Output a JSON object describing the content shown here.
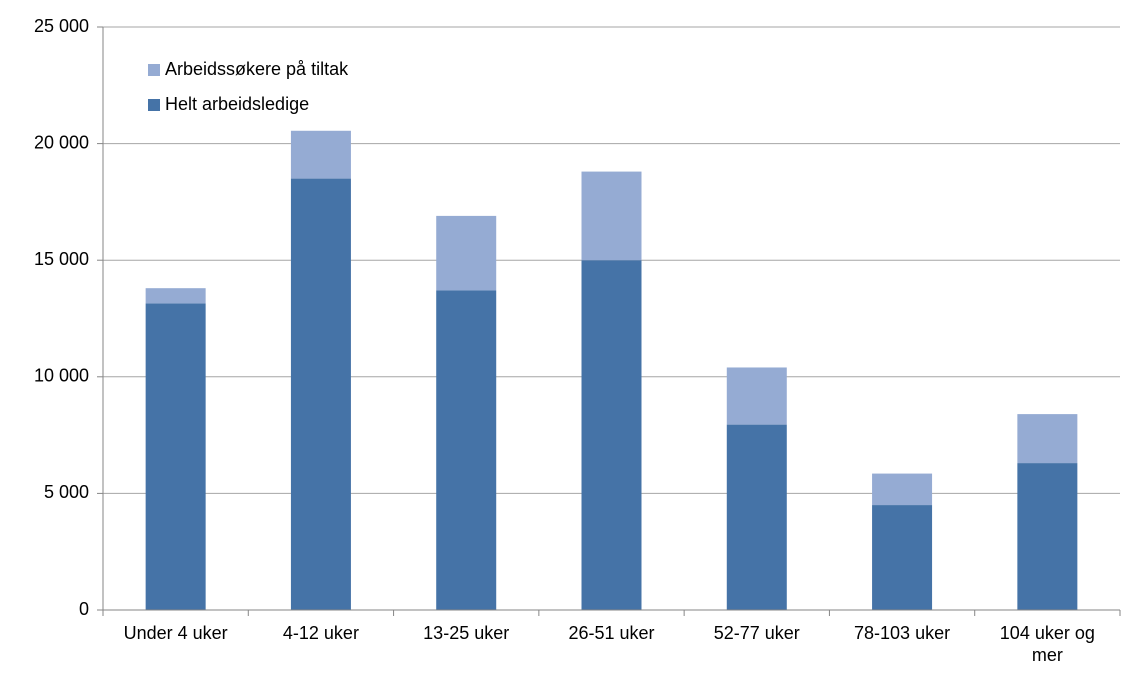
{
  "chart_data": {
    "type": "stacked_bar",
    "categories": [
      "Under 4 uker",
      "4-12 uker",
      "13-25 uker",
      "26-51 uker",
      "52-77 uker",
      "78-103 uker",
      "104 uker og mer"
    ],
    "series": [
      {
        "name": "Helt arbeidsledige",
        "color": "#4573a7",
        "values": [
          13150,
          18500,
          13700,
          15000,
          7950,
          4500,
          6300
        ]
      },
      {
        "name": "Arbeidssøkere på tiltak",
        "color": "#95abd3",
        "values": [
          650,
          2050,
          3200,
          3800,
          2450,
          1350,
          2100
        ]
      }
    ],
    "ylim": [
      0,
      25000
    ],
    "yticks": [
      0,
      {
        "value": 5000,
        "label": "5 000"
      },
      {
        "value": 10000,
        "label": "10 000"
      },
      {
        "value": 15000,
        "label": "15 000"
      },
      {
        "value": 20000,
        "label": "20 000"
      },
      {
        "value": 25000,
        "label": "25 000"
      }
    ],
    "grid": true,
    "legend": "top-left"
  }
}
